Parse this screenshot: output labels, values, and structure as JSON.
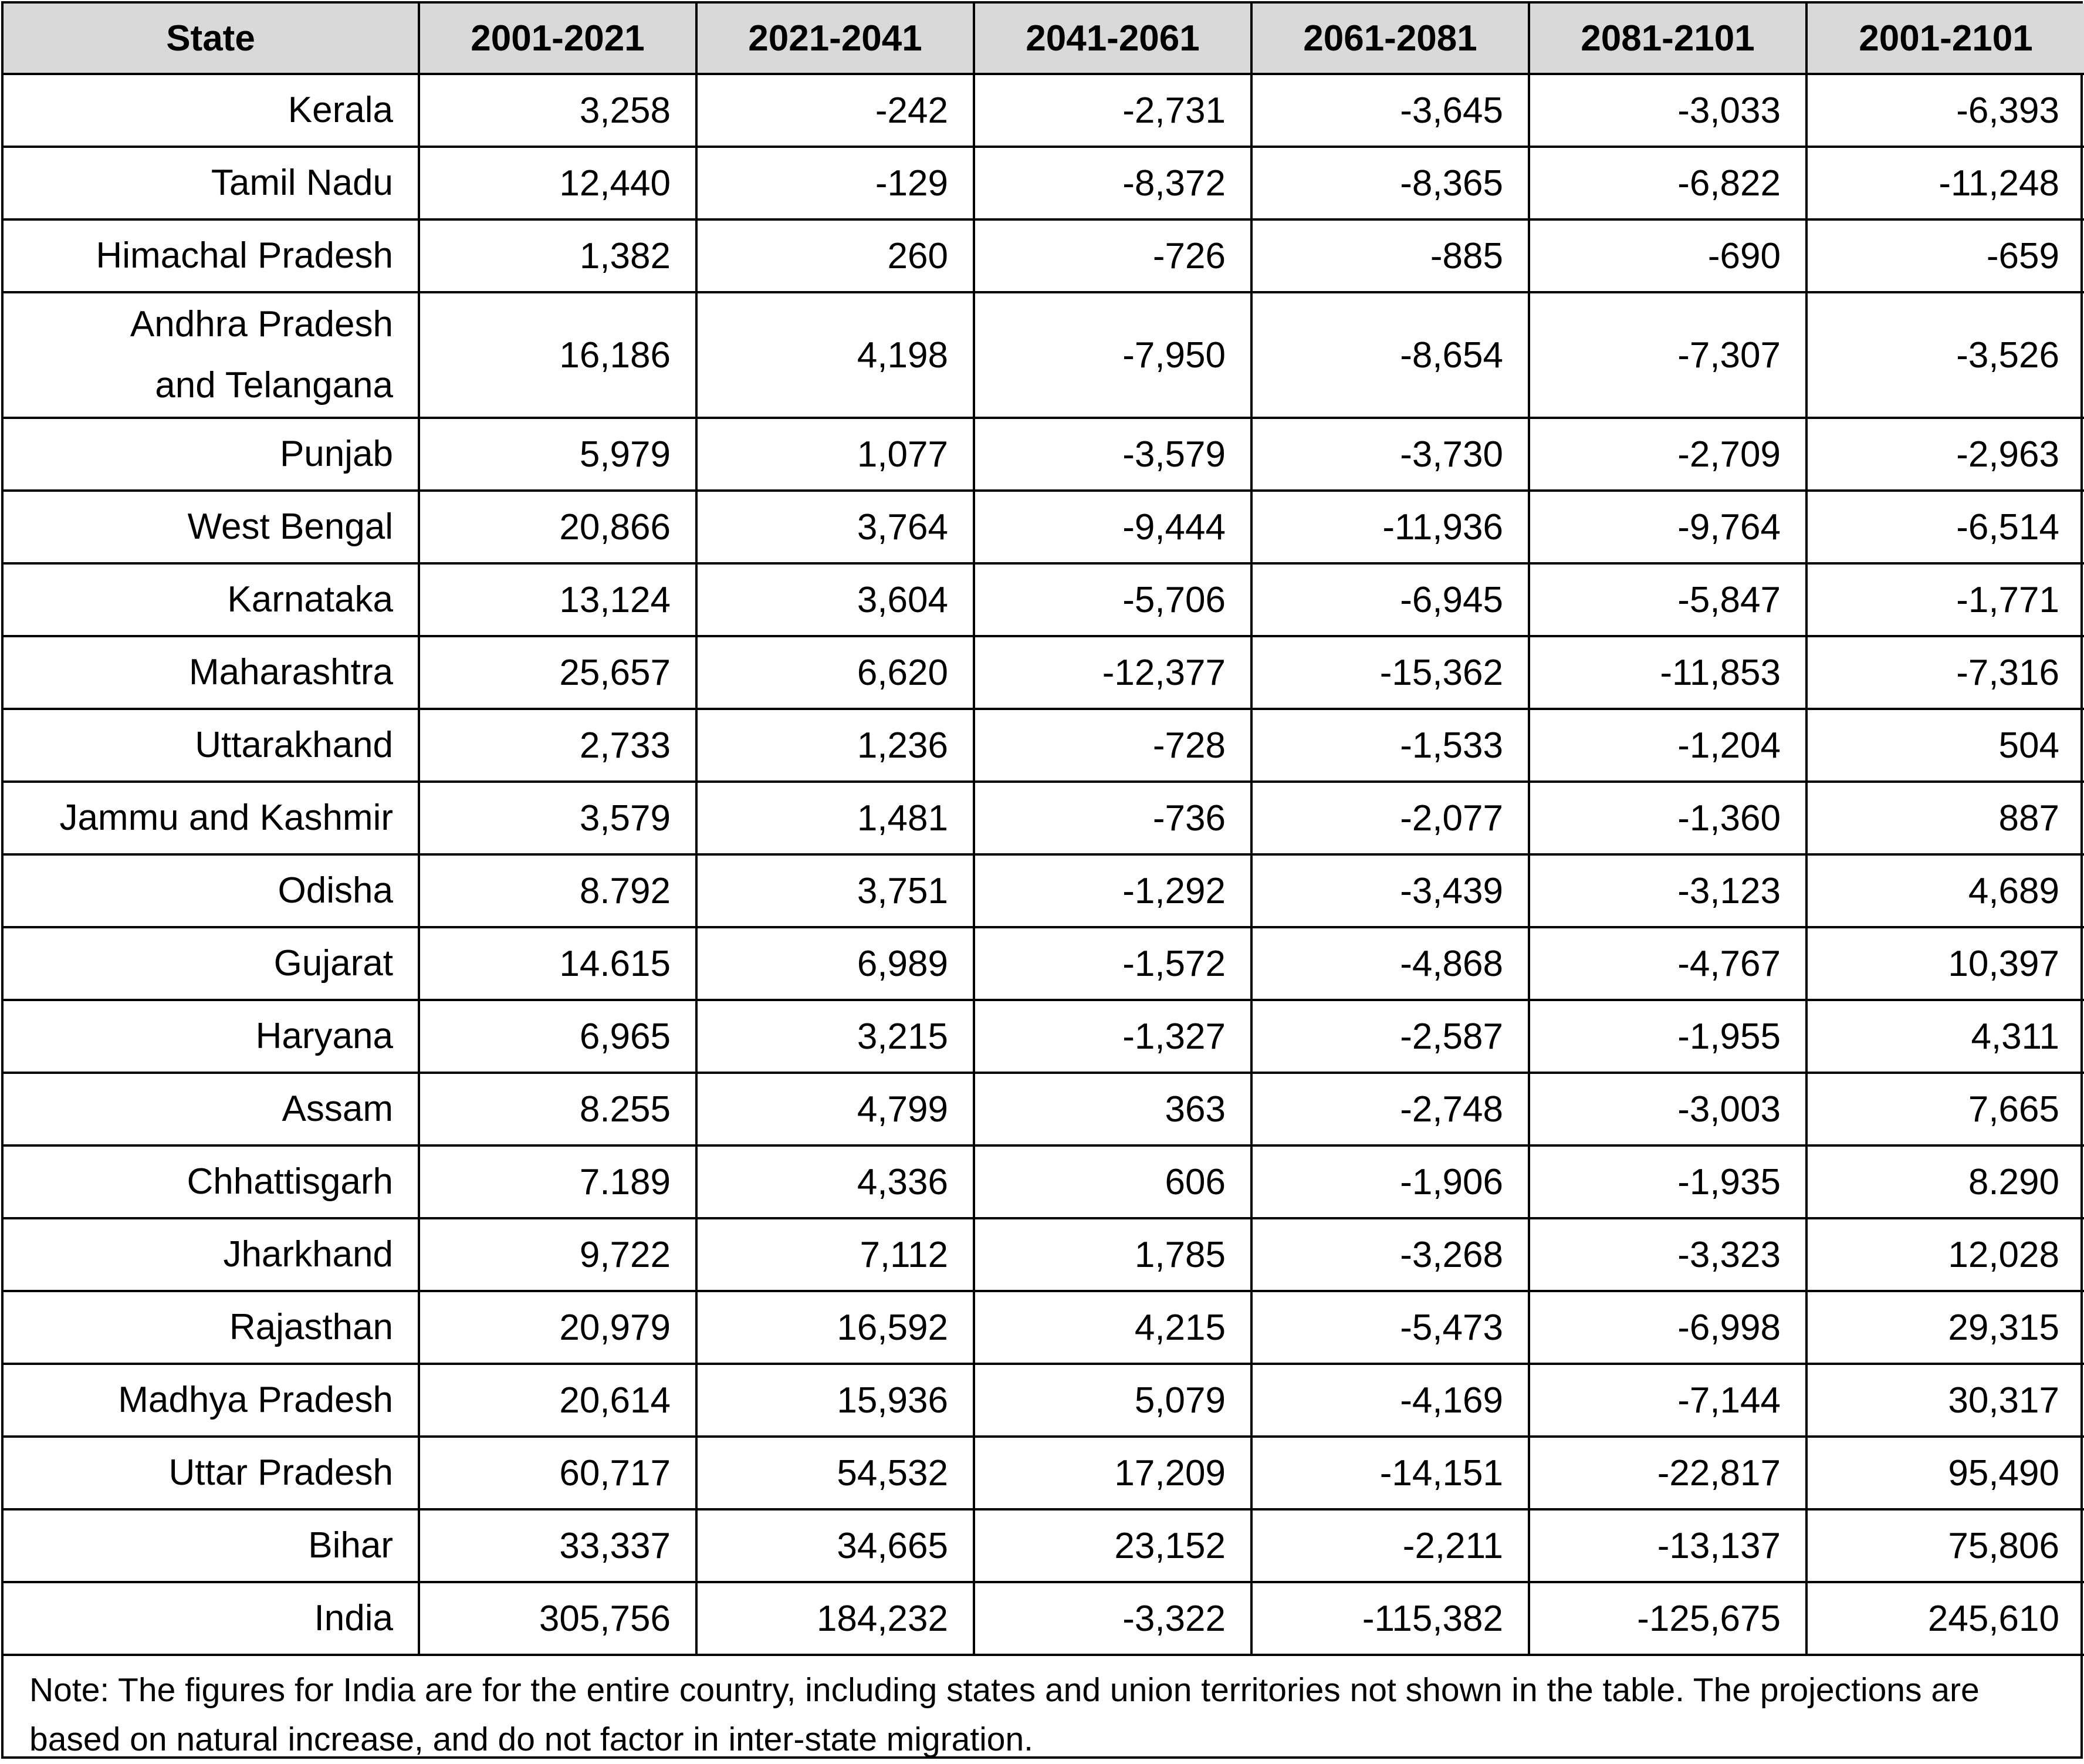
{
  "table": {
    "headers": [
      "State",
      "2001-2021",
      "2021-2041",
      "2041-2061",
      "2061-2081",
      "2081-2101",
      "2001-2101"
    ],
    "rows": [
      {
        "state": "Kerala",
        "values": [
          "3,258",
          "-242",
          "-2,731",
          "-3,645",
          "-3,033",
          "-6,393"
        ]
      },
      {
        "state": "Tamil Nadu",
        "values": [
          "12,440",
          "-129",
          "-8,372",
          "-8,365",
          "-6,822",
          "-11,248"
        ]
      },
      {
        "state": "Himachal Pradesh",
        "values": [
          "1,382",
          "260",
          "-726",
          "-885",
          "-690",
          "-659"
        ]
      },
      {
        "state": "Andhra Pradesh and Telangana",
        "values": [
          "16,186",
          "4,198",
          "-7,950",
          "-8,654",
          "-7,307",
          "-3,526"
        ]
      },
      {
        "state": "Punjab",
        "values": [
          "5,979",
          "1,077",
          "-3,579",
          "-3,730",
          "-2,709",
          "-2,963"
        ]
      },
      {
        "state": "West Bengal",
        "values": [
          "20,866",
          "3,764",
          "-9,444",
          "-11,936",
          "-9,764",
          "-6,514"
        ]
      },
      {
        "state": "Karnataka",
        "values": [
          "13,124",
          "3,604",
          "-5,706",
          "-6,945",
          "-5,847",
          "-1,771"
        ]
      },
      {
        "state": "Maharashtra",
        "values": [
          "25,657",
          "6,620",
          "-12,377",
          "-15,362",
          "-11,853",
          "-7,316"
        ]
      },
      {
        "state": "Uttarakhand",
        "values": [
          "2,733",
          "1,236",
          "-728",
          "-1,533",
          "-1,204",
          "504"
        ]
      },
      {
        "state": "Jammu and Kashmir",
        "values": [
          "3,579",
          "1,481",
          "-736",
          "-2,077",
          "-1,360",
          "887"
        ]
      },
      {
        "state": "Odisha",
        "values": [
          "8.792",
          "3,751",
          "-1,292",
          "-3,439",
          "-3,123",
          "4,689"
        ]
      },
      {
        "state": "Gujarat",
        "values": [
          "14.615",
          "6,989",
          "-1,572",
          "-4,868",
          "-4,767",
          "10,397"
        ]
      },
      {
        "state": "Haryana",
        "values": [
          "6,965",
          "3,215",
          "-1,327",
          "-2,587",
          "-1,955",
          "4,311"
        ]
      },
      {
        "state": "Assam",
        "values": [
          "8.255",
          "4,799",
          "363",
          "-2,748",
          "-3,003",
          "7,665"
        ]
      },
      {
        "state": "Chhattisgarh",
        "values": [
          "7.189",
          "4,336",
          "606",
          "-1,906",
          "-1,935",
          "8.290"
        ]
      },
      {
        "state": "Jharkhand",
        "values": [
          "9,722",
          "7,112",
          "1,785",
          "-3,268",
          "-3,323",
          "12,028"
        ]
      },
      {
        "state": "Rajasthan",
        "values": [
          "20,979",
          "16,592",
          "4,215",
          "-5,473",
          "-6,998",
          "29,315"
        ]
      },
      {
        "state": "Madhya Pradesh",
        "values": [
          "20,614",
          "15,936",
          "5,079",
          "-4,169",
          "-7,144",
          "30,317"
        ]
      },
      {
        "state": "Uttar Pradesh",
        "values": [
          "60,717",
          "54,532",
          "17,209",
          "-14,151",
          "-22,817",
          "95,490"
        ]
      },
      {
        "state": "Bihar",
        "values": [
          "33,337",
          "34,665",
          "23,152",
          "-2,211",
          "-13,137",
          "75,806"
        ]
      },
      {
        "state": "India",
        "values": [
          "305,756",
          "184,232",
          "-3,322",
          "-115,382",
          "-125,675",
          "245,610"
        ]
      }
    ]
  },
  "note": "Note: The figures for India are for the entire country, including states and union territories not shown in the table. The projections are based on natural increase, and do not factor in inter-state migration."
}
